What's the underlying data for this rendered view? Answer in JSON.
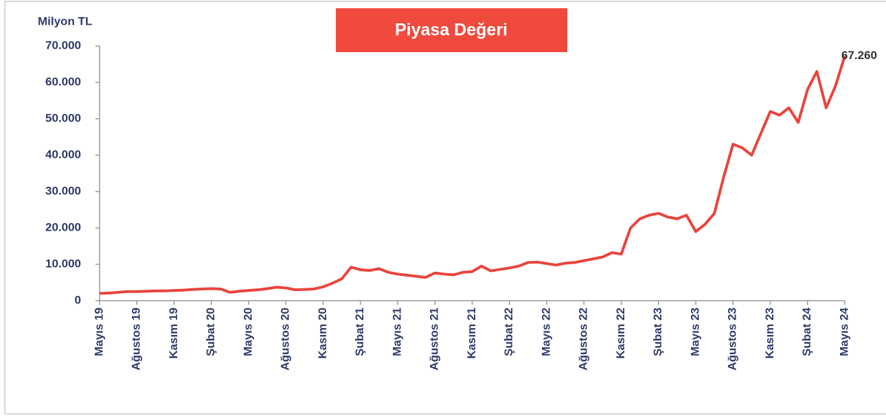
{
  "chart_data": {
    "type": "line",
    "title": "Piyasa Değeri",
    "y_label": "Milyon TL",
    "categories": [
      "Mayıs 19",
      null,
      null,
      null,
      "Ağustos 19",
      null,
      null,
      null,
      "Kasım 19",
      null,
      null,
      null,
      "Şubat 20",
      null,
      null,
      null,
      "Mayıs 20",
      null,
      null,
      null,
      "Ağustos 20",
      null,
      null,
      null,
      "Kasım 20",
      null,
      null,
      null,
      "Şubat 21",
      null,
      null,
      null,
      "Mayıs 21",
      null,
      null,
      null,
      "Ağustos 21",
      null,
      null,
      null,
      "Kasım 21",
      null,
      null,
      null,
      "Şubat 22",
      null,
      null,
      null,
      "Mayıs 22",
      null,
      null,
      null,
      "Ağustos 22",
      null,
      null,
      null,
      "Kasım 22",
      null,
      null,
      null,
      "Şubat 23",
      null,
      null,
      null,
      "Mayıs 23",
      null,
      null,
      null,
      "Ağustos 23",
      null,
      null,
      null,
      "Kasım 23",
      null,
      null,
      null,
      "Şubat 24",
      null,
      null,
      null,
      "Mayıs 24"
    ],
    "series": [
      {
        "name": "Piyasa Değeri",
        "color": "#e8453c",
        "values": [
          2000,
          2100,
          2300,
          2500,
          2500,
          2600,
          2700,
          2700,
          2800,
          2900,
          3100,
          3200,
          3300,
          3200,
          2300,
          2600,
          2800,
          3000,
          3300,
          3700,
          3500,
          3000,
          3100,
          3200,
          3800,
          4800,
          6000,
          9200,
          8500,
          8300,
          8800,
          7800,
          7300,
          7000,
          6700,
          6400,
          7600,
          7300,
          7100,
          7800,
          8000,
          9500,
          8200,
          8600,
          9000,
          9500,
          10500,
          10600,
          10200,
          9800,
          10300,
          10500,
          11000,
          11500,
          12000,
          13200,
          12800,
          20000,
          22500,
          23500,
          24000,
          23000,
          22500,
          23500,
          19000,
          21000,
          24000,
          34000,
          43000,
          42000,
          40000,
          46000,
          52000,
          51000,
          53000,
          49000,
          58000,
          63000,
          53000,
          59000,
          67260
        ],
        "end_label": {
          "value": 67260,
          "label": "67.260"
        }
      }
    ],
    "ylim": [
      0,
      70000
    ],
    "yticks": [
      0,
      {
        "value": 10000,
        "label": "10.000"
      },
      {
        "value": 20000,
        "label": "20.000"
      },
      {
        "value": 30000,
        "label": "30.000"
      },
      {
        "value": 40000,
        "label": "40.000"
      },
      {
        "value": 50000,
        "label": "50.000"
      },
      {
        "value": 60000,
        "label": "60.000"
      },
      {
        "value": 70000,
        "label": "70.000"
      }
    ],
    "grid": false
  }
}
